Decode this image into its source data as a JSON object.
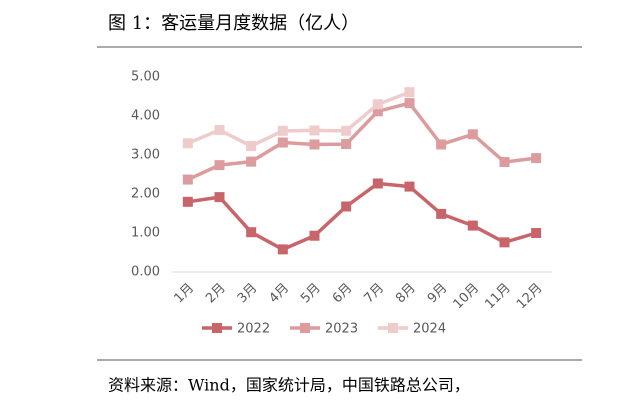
{
  "chart_data": {
    "type": "line",
    "title": "图 1：客运量月度数据（亿人）",
    "source": "资料来源：Wind，国家统计局，中国铁路总公司，",
    "categories": [
      "1月",
      "2月",
      "3月",
      "4月",
      "5月",
      "6月",
      "7月",
      "8月",
      "9月",
      "10月",
      "11月",
      "12月"
    ],
    "series": [
      {
        "name": "2022",
        "color": "#c8656a",
        "values": [
          1.8,
          1.92,
          1.02,
          0.58,
          0.93,
          1.68,
          2.27,
          2.19,
          1.49,
          1.19,
          0.76,
          1.0
        ]
      },
      {
        "name": "2023",
        "color": "#dc9c9e",
        "values": [
          2.37,
          2.74,
          2.83,
          3.32,
          3.27,
          3.28,
          4.12,
          4.33,
          3.27,
          3.53,
          2.82,
          2.92
        ]
      },
      {
        "name": "2024",
        "color": "#efcbcc",
        "values": [
          3.3,
          3.64,
          3.23,
          3.62,
          3.63,
          3.62,
          4.3,
          4.61,
          null,
          null,
          null,
          null
        ]
      }
    ],
    "ylim": [
      0,
      5
    ],
    "yticks": [
      {
        "value": 0,
        "label": "0.00"
      },
      {
        "value": 1,
        "label": "1.00"
      },
      {
        "value": 2,
        "label": "2.00"
      },
      {
        "value": 3,
        "label": "3.00"
      },
      {
        "value": 4,
        "label": "4.00"
      },
      {
        "value": 5,
        "label": "5.00"
      }
    ],
    "grid": false,
    "legend": "bottom"
  }
}
